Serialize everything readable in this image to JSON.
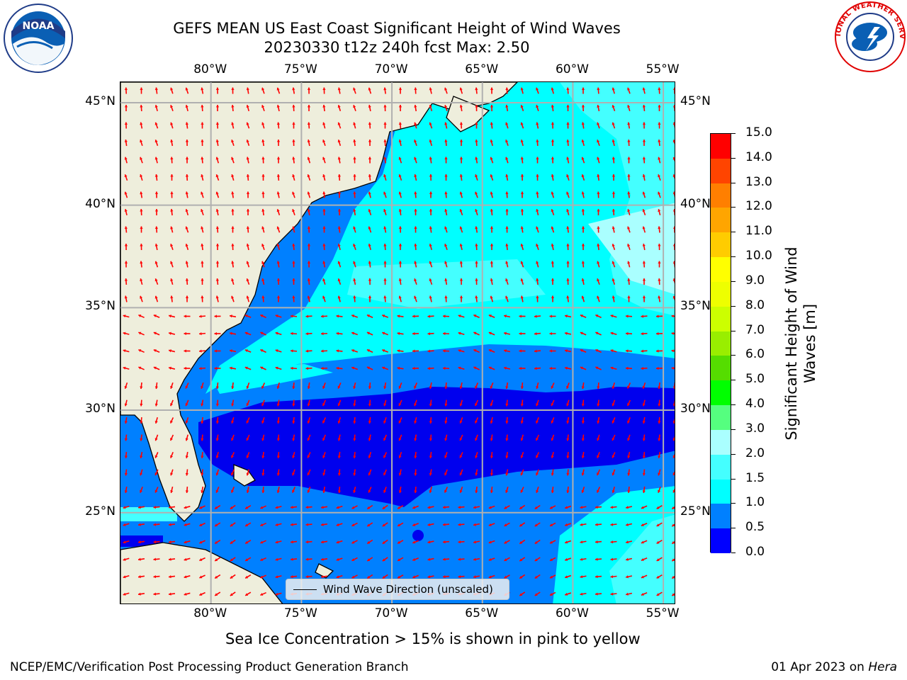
{
  "title": {
    "line1": "GEFS MEAN US East Coast Significant Height of Wind Waves",
    "line2": "20230330 t12z 240h fcst   Max: 2.50"
  },
  "logos": {
    "left": {
      "name": "noaa-logo",
      "text": "NOAA"
    },
    "right": {
      "name": "nws-logo",
      "text": "NATIONAL WEATHER SERVICE"
    }
  },
  "map": {
    "lon_ticks": [
      "80°W",
      "75°W",
      "70°W",
      "65°W",
      "60°W",
      "55°W"
    ],
    "lat_ticks": [
      "45°N",
      "40°N",
      "35°N",
      "30°N",
      "25°N"
    ],
    "lon_range": [
      -85,
      -54.3
    ],
    "lat_range": [
      20.5,
      46
    ],
    "legend_label": "Wind Wave Direction (unscaled)",
    "colors": {
      "land": "#eeeedc",
      "arrow": "#ff0000",
      "grid": "#b0b0b0"
    }
  },
  "colorbar": {
    "title_line1": "Significant Height of Wind",
    "title_line2": "Waves [m]",
    "labels": [
      "15.0",
      "14.0",
      "13.0",
      "12.0",
      "11.0",
      "10.0",
      "9.0",
      "8.0",
      "7.0",
      "6.0",
      "5.0",
      "4.0",
      "3.0",
      "2.0",
      "1.5",
      "1.0",
      "0.5",
      "0.0"
    ],
    "bins": [
      {
        "lo": 0.0,
        "hi": 0.5,
        "color": "#0000ff"
      },
      {
        "lo": 0.5,
        "hi": 1.0,
        "color": "#0080ff"
      },
      {
        "lo": 1.0,
        "hi": 1.5,
        "color": "#00ffff"
      },
      {
        "lo": 1.5,
        "hi": 2.0,
        "color": "#44ffff"
      },
      {
        "lo": 2.0,
        "hi": 3.0,
        "color": "#aaffff"
      },
      {
        "lo": 3.0,
        "hi": 4.0,
        "color": "#55ff7f"
      },
      {
        "lo": 4.0,
        "hi": 5.0,
        "color": "#00ff00"
      },
      {
        "lo": 5.0,
        "hi": 6.0,
        "color": "#55dd00"
      },
      {
        "lo": 6.0,
        "hi": 7.0,
        "color": "#99ee00"
      },
      {
        "lo": 7.0,
        "hi": 8.0,
        "color": "#ccff00"
      },
      {
        "lo": 8.0,
        "hi": 9.0,
        "color": "#eeff00"
      },
      {
        "lo": 9.0,
        "hi": 10.0,
        "color": "#ffff00"
      },
      {
        "lo": 10.0,
        "hi": 11.0,
        "color": "#ffcc00"
      },
      {
        "lo": 11.0,
        "hi": 12.0,
        "color": "#ffa500"
      },
      {
        "lo": 12.0,
        "hi": 13.0,
        "color": "#ff7f00"
      },
      {
        "lo": 13.0,
        "hi": 14.0,
        "color": "#ff4400"
      },
      {
        "lo": 14.0,
        "hi": 15.0,
        "color": "#ff0000"
      }
    ]
  },
  "subtitle": "Sea Ice Concentration > 15% is shown in pink to yellow",
  "footer": {
    "left": "NCEP/EMC/Verification Post Processing Product Generation Branch",
    "date": "01 Apr 2023 on ",
    "host": "Hera"
  }
}
